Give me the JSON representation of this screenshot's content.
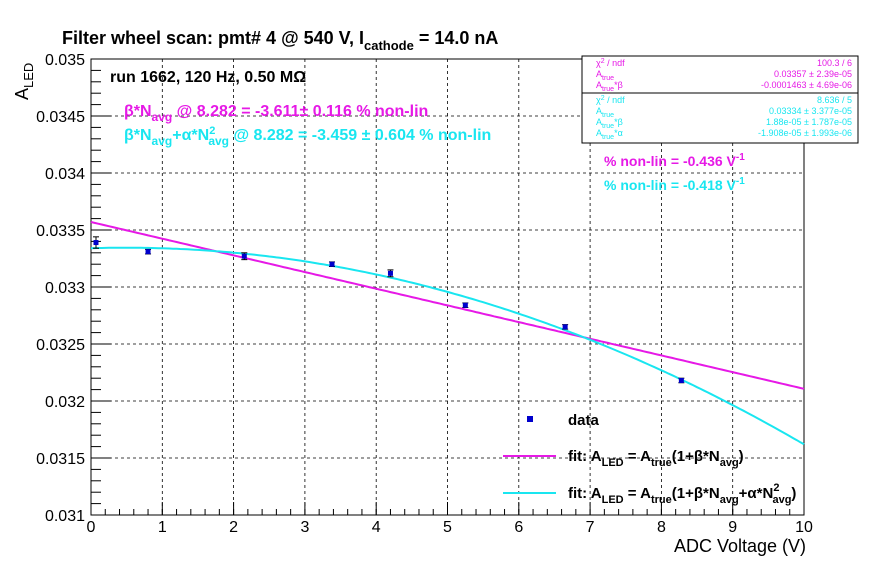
{
  "chart_data": {
    "type": "scatter",
    "title": "Filter wheel scan: pmt#   4 @   540 V, I",
    "title_sub": "cathode",
    "title_tail": " = 14.0 nA",
    "run_label": "run 1662, 120 Hz, 0.50 MΩ",
    "xlabel": "ADC Voltage (V)",
    "ylabel_main": "A",
    "ylabel_sub": "LED",
    "xlim": [
      0,
      10
    ],
    "ylim": [
      0.031,
      0.035
    ],
    "x_ticks": [
      "0",
      "1",
      "2",
      "3",
      "4",
      "5",
      "6",
      "7",
      "8",
      "9",
      "10"
    ],
    "y_ticks": [
      "0.031",
      "0.0315",
      "0.032",
      "0.0325",
      "0.033",
      "0.0335",
      "0.034",
      "0.0345",
      "0.035"
    ],
    "grid": true,
    "points": [
      {
        "x": 0.07,
        "y": 0.03339,
        "err": 5e-05
      },
      {
        "x": 0.8,
        "y": 0.03331,
        "err": 2e-05
      },
      {
        "x": 2.15,
        "y": 0.03327,
        "err": 3e-05
      },
      {
        "x": 3.38,
        "y": 0.0332,
        "err": 2e-05
      },
      {
        "x": 4.2,
        "y": 0.03312,
        "err": 3e-05
      },
      {
        "x": 5.25,
        "y": 0.03284,
        "err": 2e-05
      },
      {
        "x": 6.65,
        "y": 0.03265,
        "err": 2e-05
      },
      {
        "x": 8.28,
        "y": 0.03218,
        "err": 2e-05
      }
    ],
    "fits": [
      {
        "name": "fit1",
        "color": "#e619e6",
        "atrue": 0.03357,
        "beta": -0.0001463,
        "alpha": 0
      },
      {
        "name": "fit2",
        "color": "#19e6f0",
        "atrue": 0.03334,
        "beta": 1.88e-05,
        "alpha": -1.908e-05
      }
    ],
    "annotations": {
      "line1_a": "β*N",
      "line1_sub": "avg",
      "line1_b": " @ 8.282 = -3.611± 0.116 % non-lin",
      "line2_a": "β*N",
      "line2_sub1": "avg",
      "line2_b": "+α*N",
      "line2_sup": "2",
      "line2_sub2": "avg",
      "line2_c": " @ 8.282 = -3.459 ± 0.604 % non-lin",
      "nonlin1": "% non-lin = -0.436 V",
      "nonlin1_sup": "-1",
      "nonlin2": "% non-lin = -0.418 V",
      "nonlin2_sup": "-1"
    },
    "stats1": {
      "r1_label": "χ",
      "r1_sup": "2",
      "r1_tail": " / ndf",
      "r1_val": "100.3 / 6",
      "r2_label": "A",
      "r2_sub": "true",
      "r2_val": "0.03357 ± 2.39e-05",
      "r3_label": "A",
      "r3_sub": "true",
      "r3_tail": "*β",
      "r3_val": "-0.0001463 ± 4.69e-06"
    },
    "stats2": {
      "r1_label": "χ",
      "r1_sup": "2",
      "r1_tail": " / ndf",
      "r1_val": "8.636 / 5",
      "r2_label": "A",
      "r2_sub": "true",
      "r2_val": "0.03334 ± 3.377e-05",
      "r3_label": "A",
      "r3_sub": "true",
      "r3_tail": "*β",
      "r3_val": "1.88e-05 ± 1.787e-05",
      "r4_label": "A",
      "r4_sub": "true",
      "r4_tail": "*α",
      "r4_val": "-1.908e-05 ± 1.993e-06"
    },
    "legend": {
      "data": "data",
      "fit1_a": "fit: A",
      "fit1_s1": "LED",
      "fit1_b": " = A",
      "fit1_s2": "true",
      "fit1_c": "(1+β*N",
      "fit1_s3": "avg",
      "fit1_d": ")",
      "fit2_a": "fit: A",
      "fit2_s1": "LED",
      "fit2_b": " = A",
      "fit2_s2": "true",
      "fit2_c": "(1+β*N",
      "fit2_s3": "avg",
      "fit2_d": "+α*N",
      "fit2_sup": "2",
      "fit2_s4": "avg",
      "fit2_e": ")"
    },
    "colors": {
      "data": "#0000cc",
      "fit1": "#e619e6",
      "fit2": "#19e6f0",
      "text": "#000000"
    }
  }
}
